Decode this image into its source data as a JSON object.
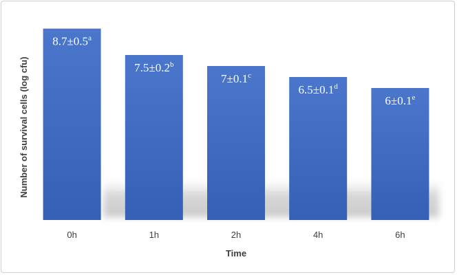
{
  "chart_data": {
    "type": "bar",
    "title": "",
    "xlabel": "Time",
    "ylabel": "Number of survival cells (log cfu)",
    "categories": [
      "0h",
      "1h",
      "2h",
      "4h",
      "6h"
    ],
    "values": [
      8.7,
      7.5,
      7,
      6.5,
      6
    ],
    "data_labels": [
      {
        "main": "8.7±0.5",
        "sup": "a"
      },
      {
        "main": "7.5±0.2",
        "sup": "b"
      },
      {
        "main": "7±0.1",
        "sup": "c"
      },
      {
        "main": "6.5±0.1",
        "sup": "d"
      },
      {
        "main": "6±0.1",
        "sup": "e"
      }
    ],
    "ylim": [
      0,
      10
    ],
    "grid": false,
    "legend": "none",
    "bar_color": "#3d68bf"
  }
}
